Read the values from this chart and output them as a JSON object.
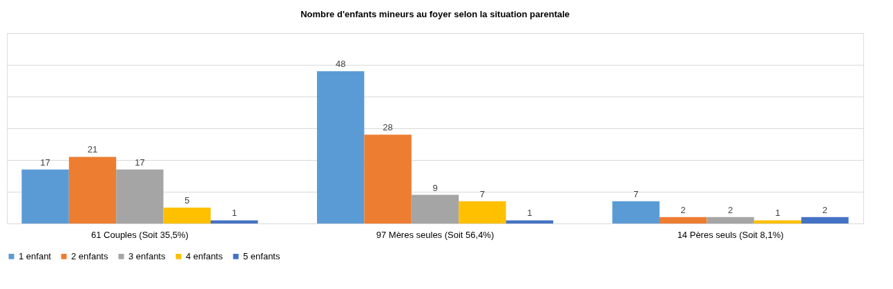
{
  "chart_data": {
    "type": "bar",
    "title": "Nombre d'enfants mineurs au foyer selon la situation parentale",
    "categories": [
      "61 Couples (Soit 35,5%)",
      "97 Mères seules (Soit 56,4%)",
      "14 Pères seuls (Soit 8,1%)"
    ],
    "series": [
      {
        "name": "1 enfant",
        "color": "#5b9bd5",
        "values": [
          17,
          48,
          7
        ]
      },
      {
        "name": "2 enfants",
        "color": "#ed7d31",
        "values": [
          21,
          28,
          2
        ]
      },
      {
        "name": "3 enfants",
        "color": "#a5a5a5",
        "values": [
          17,
          9,
          2
        ]
      },
      {
        "name": "4 enfants",
        "color": "#ffc000",
        "values": [
          5,
          7,
          1
        ]
      },
      {
        "name": "5 enfants",
        "color": "#4472c4",
        "values": [
          1,
          1,
          2
        ]
      }
    ],
    "ylim": [
      0,
      60
    ],
    "yticks": [
      {
        "value": 0,
        "label": null
      },
      {
        "value": 10,
        "label": null
      },
      {
        "value": 20,
        "label": null
      },
      {
        "value": 30,
        "label": null
      },
      {
        "value": 40,
        "label": null
      },
      {
        "value": 50,
        "label": null
      },
      {
        "value": 60,
        "label": null
      }
    ],
    "grid": "y",
    "tick_labels": "x",
    "data_labels": true,
    "legend": "bottom"
  }
}
